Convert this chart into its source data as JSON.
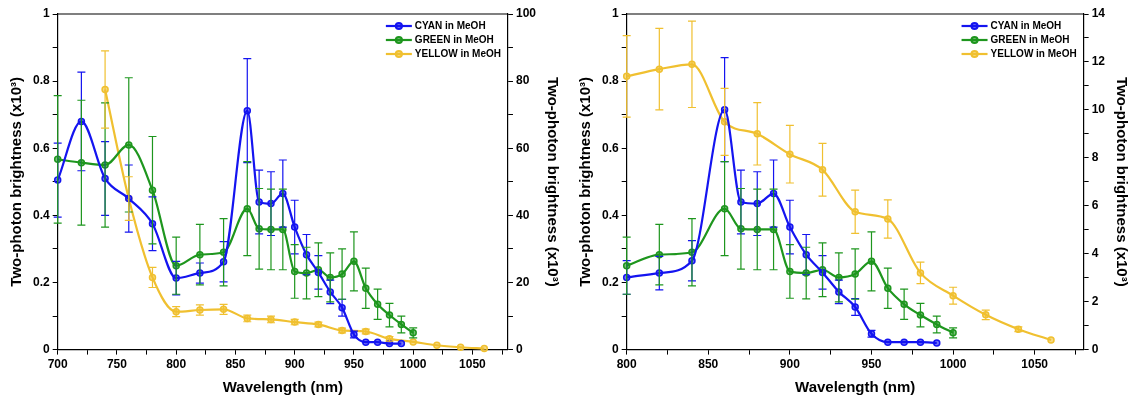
{
  "chart_data": [
    {
      "type": "line",
      "xlabel": "Wavelength (nm)",
      "ylabel": "Two-photon brightness (x10³)",
      "y2label": "Two-photon brightness (x10³)",
      "xlim": [
        700,
        1080
      ],
      "xticks": [
        700,
        {
          "value": 725,
          "label": null
        },
        750,
        {
          "value": 775,
          "label": null
        },
        800,
        {
          "value": 825,
          "label": null
        },
        850,
        {
          "value": 875,
          "label": null
        },
        900,
        {
          "value": 925,
          "label": null
        },
        950,
        {
          "value": 975,
          "label": null
        },
        1000,
        {
          "value": 1025,
          "label": null
        },
        1050,
        {
          "value": 1075,
          "label": null
        }
      ],
      "ylim": [
        0,
        1
      ],
      "yticks": [
        0,
        {
          "value": 0.1,
          "label": null
        },
        0.2,
        {
          "value": 0.3,
          "label": null
        },
        0.4,
        {
          "value": 0.5,
          "label": null
        },
        0.6,
        {
          "value": 0.7,
          "label": null
        },
        0.8,
        {
          "value": 0.9,
          "label": null
        },
        1
      ],
      "y2lim": [
        0,
        100
      ],
      "y2ticks": [
        0,
        {
          "value": 10,
          "label": null
        },
        20,
        {
          "value": 30,
          "label": null
        },
        40,
        {
          "value": 50,
          "label": null
        },
        60,
        {
          "value": 70,
          "label": null
        },
        80,
        {
          "value": 90,
          "label": null
        },
        100
      ],
      "legend": "top right",
      "marker": "circle",
      "line_style": "solid",
      "grid": false,
      "series": [
        {
          "name": "CYAN in MeOH",
          "color": "#1414f0",
          "x": [
            700,
            720,
            740,
            760,
            780,
            800,
            820,
            840,
            860,
            870,
            880,
            890,
            900,
            910,
            920,
            930,
            940,
            950,
            960,
            970,
            980,
            990
          ],
          "values": [
            0.505,
            0.68,
            0.51,
            0.45,
            0.375,
            0.213,
            0.228,
            0.262,
            0.712,
            0.44,
            0.435,
            0.465,
            0.365,
            0.283,
            0.23,
            0.172,
            0.125,
            0.045,
            0.022,
            0.022,
            0.018,
            0.018
          ],
          "errors": [
            0.11,
            0.147,
            0.11,
            0.1,
            0.08,
            0.05,
            0.03,
            0.06,
            0.155,
            0.095,
            0.095,
            0.1,
            0.08,
            0.06,
            0.05,
            0.035,
            0.025,
            0.01,
            null,
            null,
            null,
            null
          ]
        },
        {
          "name": "GREEN in MeOH",
          "color": "#1e961e",
          "x": [
            700,
            720,
            740,
            760,
            780,
            800,
            820,
            840,
            860,
            870,
            880,
            890,
            900,
            910,
            920,
            930,
            940,
            950,
            960,
            970,
            980,
            990,
            1000
          ],
          "values": [
            0.567,
            0.557,
            0.55,
            0.61,
            0.475,
            0.25,
            0.283,
            0.29,
            0.42,
            0.36,
            0.358,
            0.358,
            0.233,
            0.228,
            0.238,
            0.215,
            0.225,
            0.263,
            0.183,
            0.135,
            0.103,
            0.075,
            0.05
          ],
          "errors": [
            0.19,
            0.186,
            0.185,
            0.2,
            0.16,
            0.085,
            0.09,
            0.1,
            0.14,
            0.12,
            0.12,
            0.12,
            0.08,
            0.077,
            0.08,
            0.073,
            0.075,
            0.088,
            0.06,
            0.045,
            0.035,
            0.025,
            0.015
          ]
        },
        {
          "name": "YELLOW in MeOH",
          "color": "#f0c030",
          "axis": "y2",
          "x": [
            740,
            760,
            780,
            800,
            820,
            840,
            860,
            880,
            900,
            920,
            940,
            960,
            980,
            1000,
            1020,
            1040,
            1060
          ],
          "values": [
            77.5,
            45,
            21.5,
            11.3,
            11.8,
            12,
            9.3,
            9,
            8.2,
            7.5,
            5.7,
            5.4,
            3.2,
            2.3,
            1.3,
            0.7,
            0.3
          ],
          "errors": [
            11.5,
            6.5,
            3,
            1.5,
            1.5,
            1.5,
            1,
            1,
            0.8,
            0.7,
            0.7,
            0.7,
            0.7,
            null,
            null,
            null,
            null
          ]
        }
      ]
    },
    {
      "type": "line",
      "xlabel": "Wavelength (nm)",
      "ylabel": "Two-photon brightness (x10³)",
      "y2label": "Two-photon brightness (x10³)",
      "xlim": [
        800,
        1080
      ],
      "xticks": [
        800,
        {
          "value": 825,
          "label": null
        },
        850,
        {
          "value": 875,
          "label": null
        },
        900,
        {
          "value": 925,
          "label": null
        },
        950,
        {
          "value": 975,
          "label": null
        },
        1000,
        {
          "value": 1025,
          "label": null
        },
        1050,
        {
          "value": 1075,
          "label": null
        }
      ],
      "ylim": [
        0,
        1
      ],
      "yticks": [
        0,
        {
          "value": 0.1,
          "label": null
        },
        0.2,
        {
          "value": 0.3,
          "label": null
        },
        0.4,
        {
          "value": 0.5,
          "label": null
        },
        0.6,
        {
          "value": 0.7,
          "label": null
        },
        0.8,
        {
          "value": 0.9,
          "label": null
        },
        1
      ],
      "y2lim": [
        0,
        14
      ],
      "y2ticks": [
        0,
        {
          "value": 1,
          "label": null
        },
        2,
        {
          "value": 3,
          "label": null
        },
        4,
        {
          "value": 5,
          "label": null
        },
        6,
        {
          "value": 7,
          "label": null
        },
        8,
        {
          "value": 9,
          "label": null
        },
        10,
        {
          "value": 11,
          "label": null
        },
        12,
        {
          "value": 13,
          "label": null
        },
        14
      ],
      "legend": "top right",
      "marker": "circle",
      "line_style": "solid",
      "grid": false,
      "series": [
        {
          "name": "CYAN in MeOH",
          "color": "#1414f0",
          "x": [
            800,
            820,
            840,
            860,
            870,
            880,
            890,
            900,
            910,
            920,
            930,
            940,
            950,
            960,
            970,
            980,
            990
          ],
          "values": [
            0.215,
            0.228,
            0.265,
            0.715,
            0.44,
            0.435,
            0.465,
            0.365,
            0.283,
            0.23,
            0.172,
            0.127,
            0.047,
            0.022,
            0.022,
            0.022,
            0.02
          ],
          "errors": [
            0.05,
            0.05,
            0.06,
            0.155,
            0.095,
            0.095,
            0.1,
            0.08,
            0.06,
            0.05,
            0.035,
            0.025,
            0.01,
            null,
            null,
            null,
            null
          ]
        },
        {
          "name": "GREEN in MeOH",
          "color": "#1e961e",
          "x": [
            800,
            820,
            840,
            860,
            870,
            880,
            890,
            900,
            910,
            920,
            930,
            940,
            950,
            960,
            970,
            980,
            990,
            1000
          ],
          "values": [
            0.25,
            0.283,
            0.29,
            0.42,
            0.36,
            0.358,
            0.358,
            0.233,
            0.228,
            0.238,
            0.215,
            0.225,
            0.263,
            0.183,
            0.135,
            0.103,
            0.075,
            0.05
          ],
          "errors": [
            0.085,
            0.09,
            0.1,
            0.14,
            0.12,
            0.12,
            0.12,
            0.08,
            0.077,
            0.08,
            0.073,
            0.075,
            0.088,
            0.06,
            0.045,
            0.035,
            0.025,
            0.015
          ]
        },
        {
          "name": "YELLOW in MeOH",
          "color": "#f0c030",
          "axis": "y2",
          "x": [
            800,
            820,
            840,
            860,
            880,
            900,
            920,
            940,
            960,
            980,
            1000,
            1020,
            1040,
            1060
          ],
          "values": [
            11.4,
            11.7,
            11.9,
            9.5,
            9,
            8.15,
            7.5,
            5.75,
            5.45,
            3.2,
            2.25,
            1.45,
            0.85,
            0.4
          ],
          "errors": [
            1.7,
            1.7,
            1.8,
            1.4,
            1.3,
            1.2,
            1.1,
            0.9,
            0.8,
            0.45,
            0.35,
            0.2,
            0.1,
            null
          ]
        }
      ]
    }
  ]
}
